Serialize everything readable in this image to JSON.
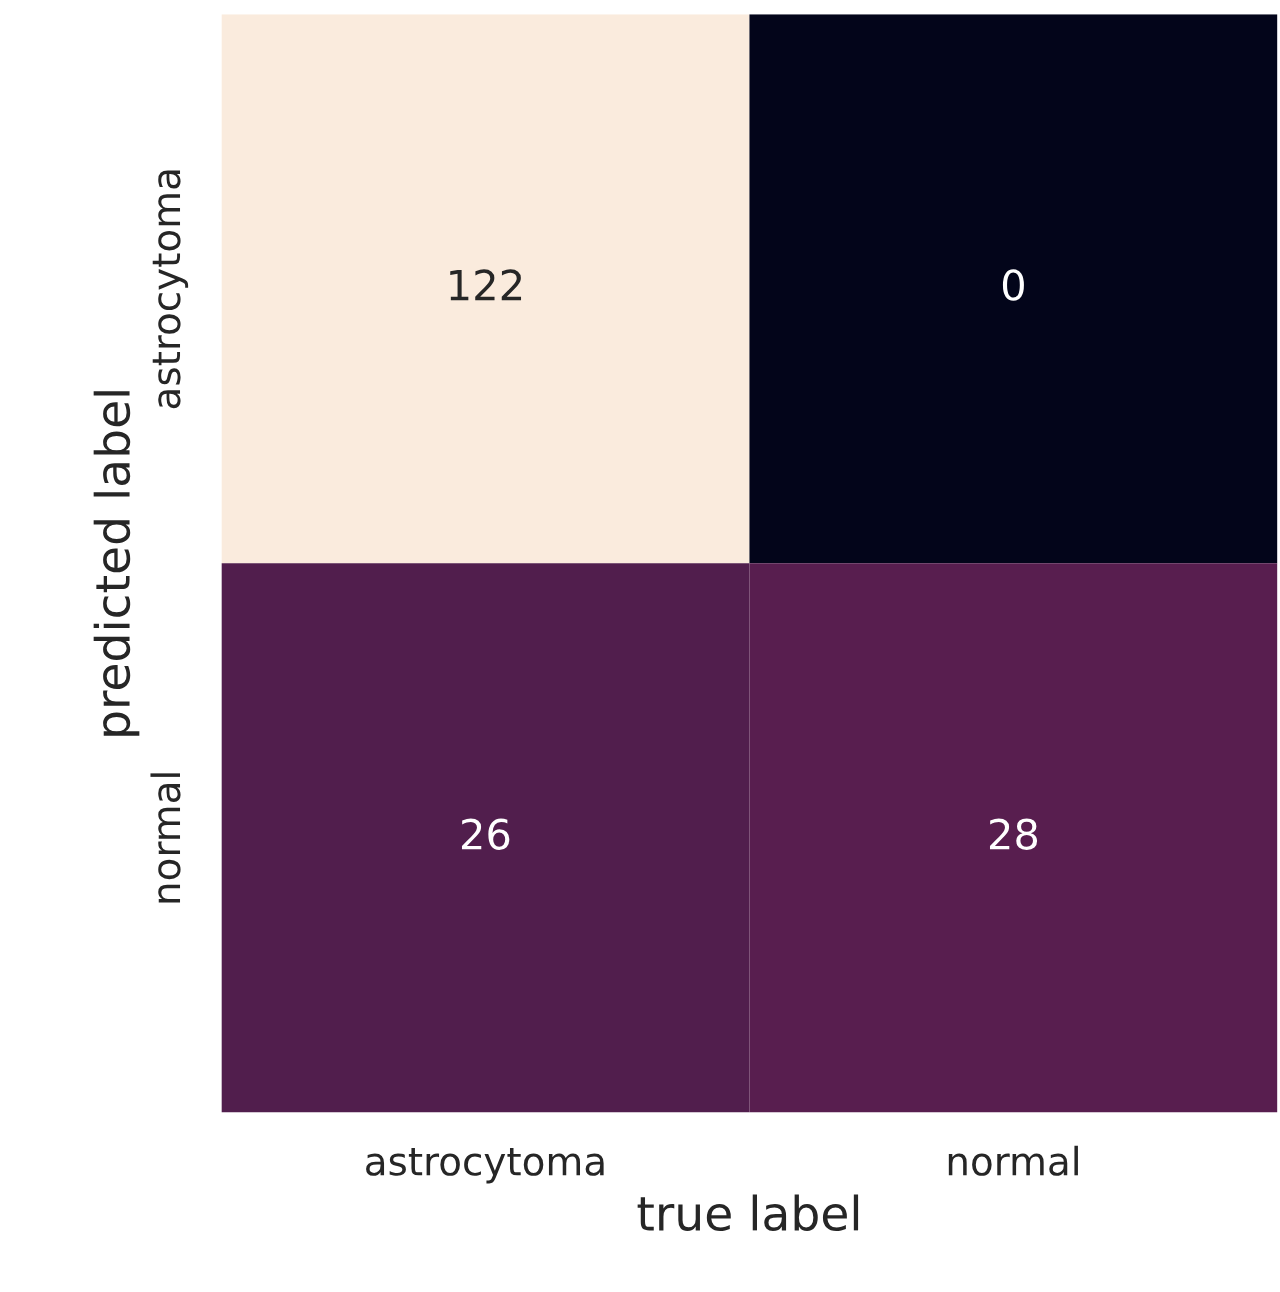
{
  "chart_data": {
    "type": "heatmap",
    "xlabel": "true label",
    "ylabel": "predicted label",
    "categories": [
      "astrocytoma",
      "normal"
    ],
    "y_categories": [
      "astrocytoma",
      "normal"
    ],
    "cells": [
      [
        122,
        0
      ],
      [
        26,
        28
      ]
    ],
    "data_labels": true
  }
}
